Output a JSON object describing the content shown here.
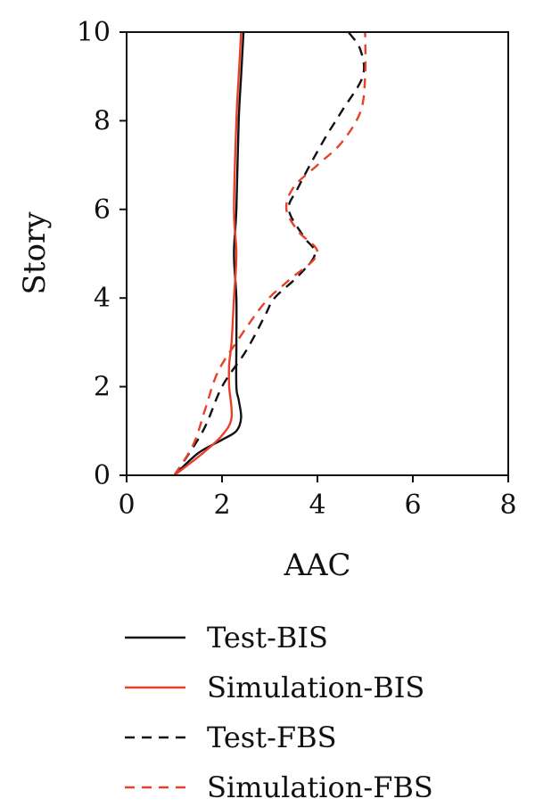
{
  "chart_data": {
    "type": "line",
    "xlabel": "AAC",
    "ylabel": "Story",
    "xlim": [
      0,
      8
    ],
    "ylim": [
      0,
      10
    ],
    "xticks": [
      "0",
      "2",
      "4",
      "6",
      "8"
    ],
    "yticks": [
      "0",
      "2",
      "4",
      "6",
      "8",
      "10"
    ],
    "grid": false,
    "legend_position": "bottom",
    "series": [
      {
        "name": "Test-BIS",
        "color": "#111111",
        "dash": "solid",
        "x": [
          1.0,
          1.5,
          2.0,
          2.3,
          2.4,
          2.35,
          2.3,
          2.3,
          2.3,
          2.25,
          2.3,
          2.35,
          2.4,
          2.45
        ],
        "y": [
          0,
          0.5,
          0.8,
          1.0,
          1.3,
          1.7,
          2.0,
          3.0,
          4.0,
          5.0,
          6.0,
          8.0,
          9.0,
          10.0
        ]
      },
      {
        "name": "Simulation-BIS",
        "color": "#e8402a",
        "dash": "solid",
        "x": [
          1.0,
          1.6,
          2.0,
          2.2,
          2.15,
          2.15,
          2.2,
          2.25,
          2.3,
          2.25,
          2.3,
          2.35,
          2.4
        ],
        "y": [
          0,
          0.5,
          0.9,
          1.3,
          2.0,
          2.5,
          3.0,
          4.0,
          5.0,
          6.0,
          8.0,
          9.0,
          10.0
        ]
      },
      {
        "name": "Test-FBS",
        "color": "#111111",
        "dash": "dashed",
        "x": [
          1.0,
          1.6,
          2.0,
          2.5,
          2.9,
          3.1,
          3.6,
          3.95,
          3.7,
          3.4,
          3.6,
          4.1,
          4.5,
          4.95,
          4.9,
          4.65
        ],
        "y": [
          0,
          1.0,
          2.0,
          2.8,
          3.6,
          4.0,
          4.5,
          5.0,
          5.4,
          6.0,
          6.5,
          7.5,
          8.2,
          9.0,
          9.6,
          10.0
        ]
      },
      {
        "name": "Simulation-FBS",
        "color": "#e8402a",
        "dash": "dashed",
        "x": [
          1.0,
          1.4,
          1.65,
          1.9,
          2.3,
          2.9,
          3.4,
          4.0,
          3.6,
          3.35,
          3.5,
          4.0,
          4.5,
          4.9,
          5.0,
          5.0
        ],
        "y": [
          0,
          0.7,
          1.5,
          2.3,
          3.0,
          3.9,
          4.4,
          5.0,
          5.5,
          6.0,
          6.5,
          7.0,
          7.5,
          8.2,
          9.0,
          10.0
        ]
      }
    ]
  }
}
